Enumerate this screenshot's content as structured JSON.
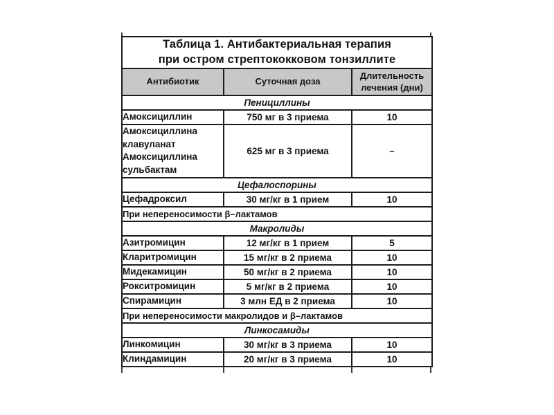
{
  "colors": {
    "background": "#ffffff",
    "header_bg": "#c8c8c8",
    "border": "#1c1c1c",
    "text": "#141414"
  },
  "table": {
    "title": "Таблица 1. Антибактериальная терапия\nпри остром стрептококковом тонзиллите",
    "header": {
      "columns": [
        "Антибиотик",
        "Суточная доза",
        "Длительность\nлечения (дни)"
      ]
    },
    "rows": [
      {
        "type": "section",
        "label": "Пенициллины"
      },
      {
        "type": "drug",
        "name": "Амоксициллин",
        "dose": "750 мг в 3 приема",
        "duration": "10"
      },
      {
        "type": "drug",
        "name": "Амоксициллина\nклавуланат\nАмоксициллина\nсульбактам",
        "dose": "625 мг в 3 приема",
        "duration": "–"
      },
      {
        "type": "section",
        "label": "Цефалоспорины"
      },
      {
        "type": "drug",
        "name": "Цефадроксил",
        "dose": "30 мг/кг в 1 прием",
        "duration": "10"
      },
      {
        "type": "note",
        "label": "При непереносимости β–лактамов"
      },
      {
        "type": "section",
        "label": "Макролиды"
      },
      {
        "type": "drug",
        "name": "Азитромицин",
        "dose": "12 мг/кг в 1 прием",
        "duration": "5"
      },
      {
        "type": "drug",
        "name": "Кларитромицин",
        "dose": "15 мг/кг в 2 приема",
        "duration": "10"
      },
      {
        "type": "drug",
        "name": "Мидекамицин",
        "dose": "50 мг/кг в 2 приема",
        "duration": "10"
      },
      {
        "type": "drug",
        "name": "Рокситромицин",
        "dose": "5 мг/кг в 2 приема",
        "duration": "10"
      },
      {
        "type": "drug",
        "name": "Спирамицин",
        "dose": "3 млн ЕД в 2 приема",
        "duration": "10"
      },
      {
        "type": "note",
        "label": "При непереносимости макролидов и β–лактамов"
      },
      {
        "type": "section",
        "label": "Линкосамиды"
      },
      {
        "type": "drug",
        "name": "Линкомицин",
        "dose": "30 мг/кг в 3 приема",
        "duration": "10"
      },
      {
        "type": "drug",
        "name": "Клиндамицин",
        "dose": "20 мг/кг в 3 приема",
        "duration": "10"
      }
    ]
  }
}
